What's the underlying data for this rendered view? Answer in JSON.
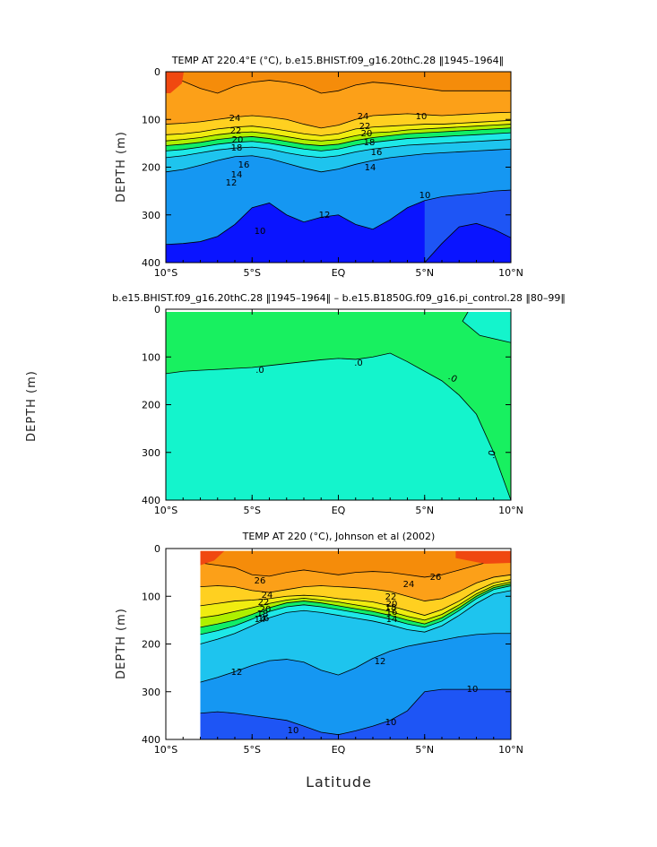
{
  "chart_data": [
    {
      "type": "heatmap",
      "subtype": "filled-contour",
      "title": "TEMP AT 220.4°E (°C), b.e15.BHIST.f09_g16.20thC.28 ‖1945–1964‖",
      "xlabel": "",
      "ylabel": "DEPTH  (m)",
      "xlim": [
        -10,
        10
      ],
      "ylim": [
        400,
        0
      ],
      "xticks": [
        "10°S",
        "5°S",
        "EQ",
        "5°N",
        "10°N"
      ],
      "yticks": [
        "0",
        "100",
        "200",
        "300",
        "400"
      ],
      "contour_labels": [
        "24",
        "22",
        "20",
        "18",
        "16",
        "14",
        "12",
        "10",
        "24",
        "22",
        "20",
        "18",
        "16",
        "14",
        "12",
        "10",
        "10"
      ],
      "isotherms": [
        {
          "level": 26,
          "depth": [
            20,
            20,
            35,
            45,
            30,
            22,
            18,
            22,
            30,
            45,
            40,
            28,
            22,
            25,
            30,
            35,
            40,
            40,
            40,
            40,
            40
          ]
        },
        {
          "level": 24,
          "depth": [
            110,
            108,
            105,
            100,
            95,
            92,
            95,
            100,
            110,
            118,
            112,
            100,
            92,
            90,
            88,
            90,
            92,
            90,
            88,
            86,
            85
          ]
        },
        {
          "level": 22,
          "depth": [
            132,
            130,
            126,
            120,
            116,
            114,
            118,
            124,
            130,
            134,
            130,
            120,
            116,
            114,
            112,
            110,
            110,
            108,
            106,
            104,
            102
          ]
        },
        {
          "level": 20,
          "depth": [
            145,
            142,
            138,
            132,
            128,
            126,
            130,
            136,
            142,
            145,
            142,
            134,
            128,
            126,
            122,
            120,
            118,
            116,
            114,
            112,
            110
          ]
        },
        {
          "level": 18,
          "depth": [
            155,
            152,
            148,
            142,
            138,
            136,
            140,
            146,
            152,
            155,
            152,
            144,
            138,
            134,
            130,
            128,
            126,
            124,
            122,
            120,
            118
          ]
        },
        {
          "level": 16,
          "depth": [
            166,
            163,
            158,
            152,
            148,
            146,
            150,
            156,
            162,
            166,
            162,
            154,
            148,
            144,
            140,
            138,
            136,
            134,
            132,
            130,
            128
          ]
        },
        {
          "level": 14,
          "depth": [
            180,
            176,
            170,
            164,
            160,
            158,
            162,
            170,
            176,
            180,
            176,
            168,
            162,
            158,
            154,
            152,
            150,
            148,
            146,
            144,
            142
          ]
        },
        {
          "level": 12,
          "depth": [
            210,
            205,
            196,
            186,
            178,
            176,
            182,
            192,
            202,
            210,
            204,
            194,
            186,
            180,
            176,
            172,
            170,
            168,
            166,
            164,
            162
          ]
        },
        {
          "level": 10,
          "depth": [
            362,
            360,
            356,
            345,
            320,
            285,
            275,
            300,
            315,
            305,
            300,
            320,
            330,
            310,
            285,
            270,
            262,
            258,
            255,
            250,
            248
          ]
        },
        {
          "level": 8,
          "depth": [
            null,
            null,
            null,
            null,
            null,
            null,
            null,
            null,
            null,
            null,
            null,
            null,
            null,
            null,
            null,
            400,
            360,
            325,
            318,
            330,
            348
          ]
        }
      ]
    },
    {
      "type": "heatmap",
      "subtype": "filled-contour",
      "title": "b.e15.BHIST.f09_g16.20thC.28 ‖1945–1964‖ – b.e15.B1850G.f09_g16.pi_control.28 ‖80–99‖",
      "xlabel": "",
      "ylabel": "DEPTH  (m)",
      "xlim": [
        -10,
        10
      ],
      "ylim": [
        400,
        0
      ],
      "xticks": [
        "10°S",
        "5°S",
        "EQ",
        "5°N",
        "10°N"
      ],
      "yticks": [
        "0",
        "100",
        "200",
        "300",
        "400"
      ],
      "contour_labels": [
        "0",
        "0",
        "0",
        "0"
      ],
      "zero_contour_depth": [
        135,
        130,
        128,
        126,
        124,
        122,
        118,
        114,
        110,
        106,
        103,
        105,
        100,
        92,
        110,
        130,
        150,
        180,
        220,
        300,
        400
      ]
    },
    {
      "type": "heatmap",
      "subtype": "filled-contour",
      "title": "TEMP AT 220 (°C), Johnson et al (2002)",
      "xlabel": "Latitude",
      "ylabel": "DEPTH  (m)",
      "xlim": [
        -10,
        10
      ],
      "ylim": [
        400,
        0
      ],
      "data_xlim": [
        -8,
        10
      ],
      "xticks": [
        "10°S",
        "5°S",
        "EQ",
        "5°N",
        "10°N"
      ],
      "yticks": [
        "0",
        "100",
        "200",
        "300",
        "400"
      ],
      "contour_labels": [
        "26",
        "24",
        "22",
        "20",
        "18",
        "16",
        "14",
        "12",
        "10",
        "26",
        "24",
        "22",
        "20",
        "18",
        "16",
        "14",
        "12",
        "10",
        "10"
      ],
      "isotherms": [
        {
          "level": 26,
          "depth": [
            null,
            null,
            30,
            35,
            40,
            55,
            58,
            50,
            45,
            50,
            55,
            50,
            48,
            50,
            55,
            60,
            55,
            45,
            35,
            25,
            20
          ]
        },
        {
          "level": 24,
          "depth": [
            null,
            null,
            80,
            78,
            80,
            88,
            92,
            86,
            80,
            78,
            80,
            82,
            85,
            90,
            100,
            110,
            105,
            90,
            72,
            60,
            55
          ]
        },
        {
          "level": 22,
          "depth": [
            null,
            null,
            120,
            115,
            110,
            108,
            105,
            100,
            98,
            100,
            105,
            108,
            112,
            120,
            130,
            140,
            128,
            110,
            88,
            72,
            65
          ]
        },
        {
          "level": 20,
          "depth": [
            null,
            null,
            145,
            140,
            132,
            124,
            115,
            108,
            104,
            108,
            112,
            118,
            124,
            132,
            142,
            150,
            138,
            118,
            95,
            78,
            70
          ]
        },
        {
          "level": 18,
          "depth": [
            null,
            null,
            165,
            158,
            150,
            138,
            124,
            114,
            110,
            114,
            120,
            126,
            132,
            140,
            150,
            158,
            145,
            124,
            100,
            82,
            74
          ]
        },
        {
          "level": 16,
          "depth": [
            null,
            null,
            180,
            172,
            162,
            148,
            132,
            122,
            118,
            122,
            128,
            134,
            140,
            148,
            158,
            165,
            152,
            130,
            105,
            86,
            78
          ]
        },
        {
          "level": 14,
          "depth": [
            null,
            null,
            200,
            190,
            178,
            162,
            145,
            134,
            130,
            134,
            140,
            146,
            152,
            160,
            170,
            175,
            162,
            140,
            115,
            95,
            88
          ]
        },
        {
          "level": 12,
          "depth": [
            null,
            null,
            280,
            270,
            258,
            245,
            235,
            232,
            238,
            255,
            265,
            250,
            230,
            215,
            205,
            198,
            192,
            185,
            180,
            178,
            178
          ]
        },
        {
          "level": 10,
          "depth": [
            null,
            null,
            345,
            342,
            345,
            350,
            355,
            360,
            372,
            385,
            390,
            382,
            372,
            360,
            340,
            300,
            295,
            295,
            295,
            295,
            295
          ]
        }
      ]
    }
  ],
  "colors": {
    "lt8": "#0a14ff",
    "8_10": "#1e55f5",
    "10_12": "#1597f2",
    "12_14": "#1ec4ee",
    "14_16": "#1ee8e8",
    "16_18": "#10ee68",
    "18_20": "#aef000",
    "20_22": "#f0ec10",
    "22_24": "#ffd020",
    "24_26": "#fca018",
    "26_28": "#f58c0a",
    "gt28": "#f04810",
    "diff_pos": "#18f060",
    "diff_zero": "#14f4cc"
  }
}
